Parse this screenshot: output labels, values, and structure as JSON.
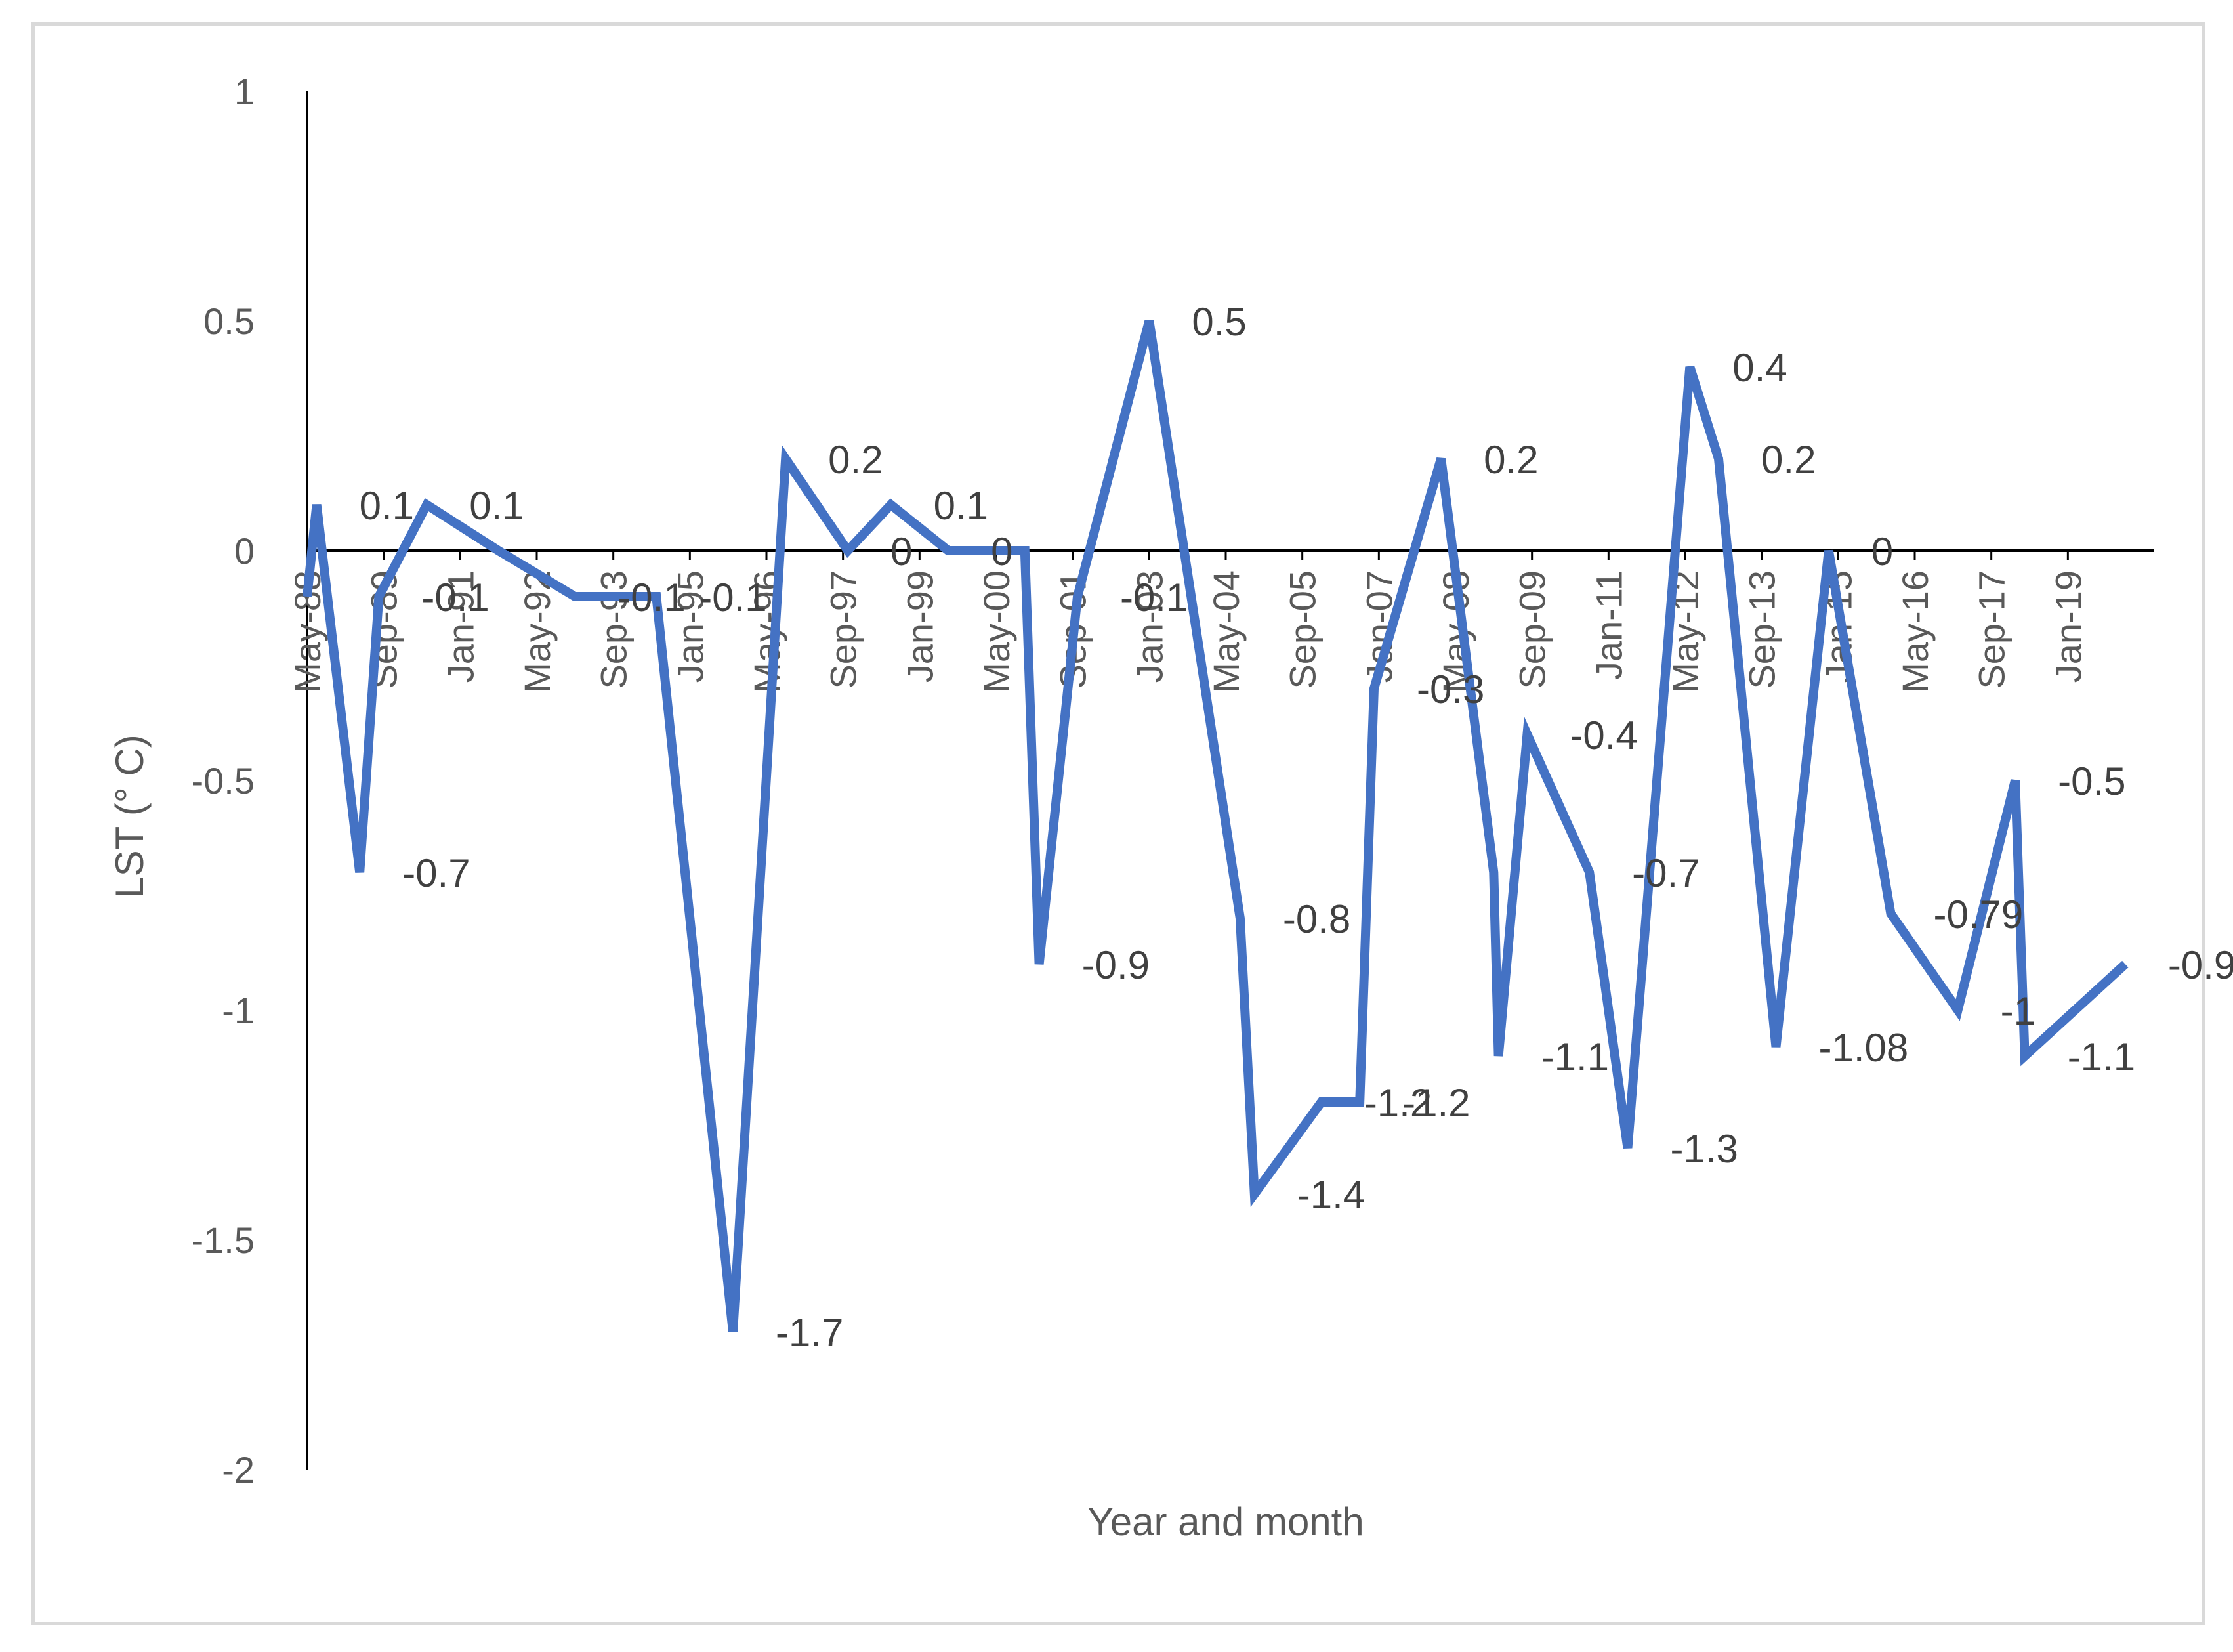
{
  "chart_data": {
    "type": "line",
    "title": "",
    "xlabel": "Year and month",
    "ylabel": "LST (° C)",
    "ylim": [
      -2,
      1
    ],
    "y_ticks": [
      1,
      0.5,
      0,
      -0.5,
      -1,
      -1.5,
      -2
    ],
    "grid": false,
    "legend": "none",
    "line_color": "#4472c4",
    "x_tick_labels": [
      "May-88",
      "Sep-89",
      "Jan-91",
      "May-92",
      "Sep-93",
      "Jan-95",
      "May-96",
      "Sep-97",
      "Jan-99",
      "May-00",
      "Sep-01",
      "Jan-03",
      "May-04",
      "Sep-05",
      "Jan-07",
      "May-08",
      "Sep-09",
      "Jan-11",
      "May-12",
      "Sep-13",
      "Jan-15",
      "May-16",
      "Sep-17",
      "Jan-19"
    ],
    "x_tick_months": [
      0,
      16,
      32,
      48,
      64,
      80,
      96,
      112,
      128,
      144,
      160,
      176,
      192,
      208,
      224,
      240,
      256,
      272,
      288,
      304,
      320,
      336,
      352,
      368
    ],
    "x_range_months": [
      0,
      384
    ],
    "series": [
      {
        "points": [
          {
            "m": 0,
            "y": -0.1,
            "label": ""
          },
          {
            "m": 2,
            "y": 0.1,
            "label": "0.1"
          },
          {
            "m": 11,
            "y": -0.7,
            "label": "-0.7"
          },
          {
            "m": 15,
            "y": -0.1,
            "label": "-0.1"
          },
          {
            "m": 25,
            "y": 0.1,
            "label": "0.1"
          },
          {
            "m": 40,
            "y": 0,
            "label": ""
          },
          {
            "m": 56,
            "y": -0.1,
            "label": "-0.1"
          },
          {
            "m": 73,
            "y": -0.1,
            "label": "-0.1"
          },
          {
            "m": 89,
            "y": -1.7,
            "label": "-1.7"
          },
          {
            "m": 100,
            "y": 0.2,
            "label": "0.2"
          },
          {
            "m": 113,
            "y": 0,
            "label": "0"
          },
          {
            "m": 122,
            "y": 0.1,
            "label": "0.1"
          },
          {
            "m": 134,
            "y": 0,
            "label": "0"
          },
          {
            "m": 150,
            "y": 0,
            "label": ""
          },
          {
            "m": 153,
            "y": -0.9,
            "label": "-0.9"
          },
          {
            "m": 161,
            "y": -0.1,
            "label": "-0.1"
          },
          {
            "m": 176,
            "y": 0.5,
            "label": "0.5"
          },
          {
            "m": 195,
            "y": -0.8,
            "label": "-0.8"
          },
          {
            "m": 198,
            "y": -1.4,
            "label": "-1.4"
          },
          {
            "m": 212,
            "y": -1.2,
            "label": "-1.2"
          },
          {
            "m": 220,
            "y": -1.2,
            "label": "-1.2"
          },
          {
            "m": 223,
            "y": -0.3,
            "label": "-0.3"
          },
          {
            "m": 237,
            "y": 0.2,
            "label": "0.2"
          },
          {
            "m": 248,
            "y": -0.7,
            "label": ""
          },
          {
            "m": 249,
            "y": -1.1,
            "label": "-1.1"
          },
          {
            "m": 255,
            "y": -0.4,
            "label": "-0.4"
          },
          {
            "m": 268,
            "y": -0.7,
            "label": "-0.7"
          },
          {
            "m": 276,
            "y": -1.3,
            "label": "-1.3"
          },
          {
            "m": 289,
            "y": 0.4,
            "label": "0.4"
          },
          {
            "m": 295,
            "y": 0.2,
            "label": "0.2"
          },
          {
            "m": 307,
            "y": -1.08,
            "label": "-1.08"
          },
          {
            "m": 318,
            "y": 0,
            "label": "0"
          },
          {
            "m": 331,
            "y": -0.79,
            "label": "-0.79"
          },
          {
            "m": 345,
            "y": -1,
            "label": "-1"
          },
          {
            "m": 357,
            "y": -0.5,
            "label": "-0.5"
          },
          {
            "m": 359,
            "y": -1.1,
            "label": "-1.1"
          },
          {
            "m": 380,
            "y": -0.9,
            "label": "-0.9"
          }
        ]
      }
    ]
  }
}
